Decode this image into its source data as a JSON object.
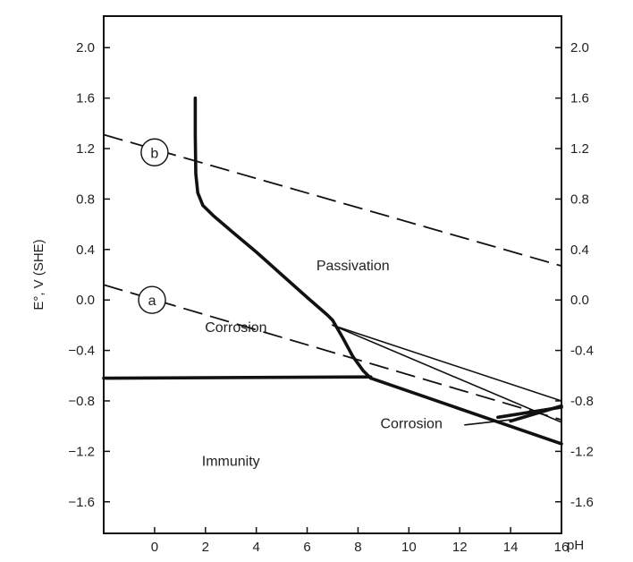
{
  "chart_data": {
    "type": "line",
    "title": "",
    "xlabel": "pH",
    "ylabel": "E°, V (SHE)",
    "xlim": [
      -2,
      16
    ],
    "ylim": [
      -1.85,
      2.25
    ],
    "x_ticks": [
      0,
      2,
      4,
      6,
      8,
      10,
      12,
      14,
      16
    ],
    "x_tick_labels": [
      "0",
      "2",
      "4",
      "6",
      "8",
      "10",
      "12",
      "14",
      "16"
    ],
    "y_ticks": [
      2.0,
      1.6,
      1.2,
      0.8,
      0.4,
      0.0,
      -0.4,
      -0.8,
      -1.2,
      -1.6
    ],
    "y_tick_labels": [
      "2.0",
      "1.6",
      "1.2",
      "0.8",
      "0.4",
      "0.0",
      "-0.4",
      "-0.8",
      "-1.2",
      "-1.6"
    ],
    "y_tick_labels_left": [
      "2.0",
      "1.6",
      "1.2",
      "0.8",
      "0.4",
      "0.0",
      "−0.4",
      "−0.8",
      "−1.2",
      "−1.6"
    ],
    "grid": false,
    "regions": [
      {
        "label": "Passivation",
        "x": 7.8,
        "y": 0.27
      },
      {
        "label": "Corrosion",
        "x": 3.2,
        "y": -0.22
      },
      {
        "label": "Corrosion",
        "x": 10.1,
        "y": -0.98
      },
      {
        "label": "Immunity",
        "x": 3.0,
        "y": -1.28
      }
    ],
    "reference_lines": [
      {
        "label": "a",
        "style": "dashed",
        "x": [
          -2,
          16
        ],
        "y": [
          0.12,
          -0.95
        ],
        "label_x": -0.1,
        "label_y": 0.0
      },
      {
        "label": "b",
        "style": "dashed",
        "x": [
          -2,
          16
        ],
        "y": [
          1.31,
          0.27
        ],
        "label_x": 0.0,
        "label_y": 1.17
      }
    ],
    "boundaries": [
      {
        "style": "thick",
        "x": [
          1.6,
          1.6,
          1.62,
          1.7,
          1.9,
          2.3,
          3.0,
          4.0,
          5.0,
          6.0,
          6.8,
          7.0,
          7.4,
          7.8,
          8.2,
          8.5
        ],
        "y": [
          1.6,
          1.3,
          1.0,
          0.85,
          0.75,
          0.67,
          0.55,
          0.38,
          0.2,
          0.02,
          -0.12,
          -0.16,
          -0.3,
          -0.45,
          -0.56,
          -0.62
        ]
      },
      {
        "style": "thick",
        "x": [
          -2,
          8.5
        ],
        "y": [
          -0.62,
          -0.61
        ]
      },
      {
        "style": "thick",
        "x": [
          8.5,
          16
        ],
        "y": [
          -0.62,
          -1.14
        ]
      },
      {
        "style": "thin",
        "x": [
          7.0,
          16
        ],
        "y": [
          -0.2,
          -0.8
        ]
      },
      {
        "style": "thin",
        "x": [
          7.0,
          16
        ],
        "y": [
          -0.2,
          -0.97
        ]
      },
      {
        "style": "thick",
        "x": [
          13.5,
          16
        ],
        "y": [
          -0.93,
          -0.85
        ]
      },
      {
        "style": "thick",
        "x": [
          14.0,
          16
        ],
        "y": [
          -0.96,
          -0.84
        ]
      },
      {
        "style": "thin",
        "x": [
          12.2,
          14.0
        ],
        "y": [
          -0.99,
          -0.95
        ]
      }
    ]
  }
}
